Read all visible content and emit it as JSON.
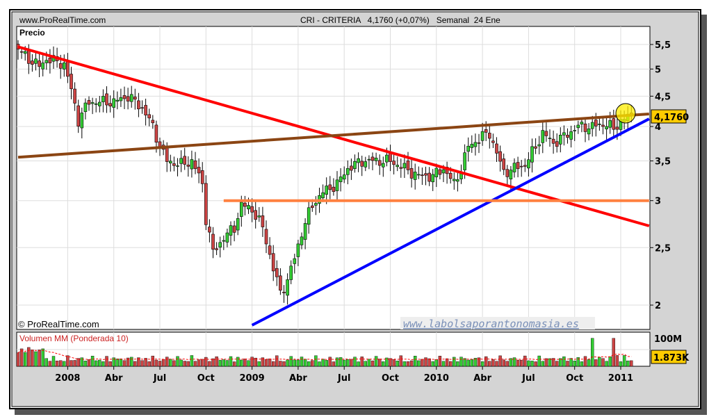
{
  "header": {
    "site": "www.ProRealTime.com",
    "instrument": "CRI - CRITERIA   4,1760 (+0,07%)   Semanal  24 Ene"
  },
  "chart_data": {
    "type": "candlestick",
    "title": "CRI - CRITERIA",
    "price_panel_label": "Precio",
    "volume_panel_label": "Volumen MM (Ponderada 10)",
    "watermark": "© ProRealTime.com",
    "website": "www.labolsaporantonomasia.es",
    "y_ticks": [
      5.5,
      5,
      4.5,
      4,
      3.5,
      3,
      2.5,
      2
    ],
    "y_tick_labels": [
      "5,5",
      "5",
      "4,5",
      "4",
      "3,5",
      "3",
      "2,5",
      "2"
    ],
    "ylim": [
      1.85,
      5.8
    ],
    "y_scale": "log",
    "x_ticks": [
      {
        "label": "2008",
        "week": 14
      },
      {
        "label": "Abr",
        "week": 27
      },
      {
        "label": "Jul",
        "week": 40
      },
      {
        "label": "Oct",
        "week": 53
      },
      {
        "label": "2009",
        "week": 66
      },
      {
        "label": "Abr",
        "week": 79
      },
      {
        "label": "Jul",
        "week": 92
      },
      {
        "label": "Oct",
        "week": 105
      },
      {
        "label": "2010",
        "week": 118
      },
      {
        "label": "Abr",
        "week": 131
      },
      {
        "label": "Jul",
        "week": 144
      },
      {
        "label": "Oct",
        "week": 157
      },
      {
        "label": "2011",
        "week": 170
      }
    ],
    "weeks": 174,
    "close_keypoints": [
      [
        0,
        5.4
      ],
      [
        3,
        5.2
      ],
      [
        6,
        5.05
      ],
      [
        8,
        5.2
      ],
      [
        13,
        5.1
      ],
      [
        15,
        4.6
      ],
      [
        17,
        4.1
      ],
      [
        20,
        4.4
      ],
      [
        23,
        4.4
      ],
      [
        27,
        4.4
      ],
      [
        31,
        4.5
      ],
      [
        35,
        4.3
      ],
      [
        38,
        4.0
      ],
      [
        40,
        3.7
      ],
      [
        42,
        3.5
      ],
      [
        46,
        3.45
      ],
      [
        49,
        3.5
      ],
      [
        52,
        3.2
      ],
      [
        53,
        2.8
      ],
      [
        55,
        2.45
      ],
      [
        58,
        2.6
      ],
      [
        61,
        2.7
      ],
      [
        63,
        2.95
      ],
      [
        66,
        2.9
      ],
      [
        69,
        2.7
      ],
      [
        72,
        2.3
      ],
      [
        74,
        2.1
      ],
      [
        76,
        2.2
      ],
      [
        78,
        2.4
      ],
      [
        80,
        2.65
      ],
      [
        83,
        2.95
      ],
      [
        86,
        3.1
      ],
      [
        90,
        3.2
      ],
      [
        93,
        3.4
      ],
      [
        97,
        3.5
      ],
      [
        101,
        3.5
      ],
      [
        105,
        3.5
      ],
      [
        109,
        3.4
      ],
      [
        113,
        3.3
      ],
      [
        117,
        3.3
      ],
      [
        120,
        3.4
      ],
      [
        123,
        3.2
      ],
      [
        125,
        3.4
      ],
      [
        127,
        3.7
      ],
      [
        131,
        3.85
      ],
      [
        133,
        3.9
      ],
      [
        135,
        3.6
      ],
      [
        137,
        3.35
      ],
      [
        140,
        3.4
      ],
      [
        143,
        3.45
      ],
      [
        146,
        3.7
      ],
      [
        148,
        3.9
      ],
      [
        151,
        3.75
      ],
      [
        154,
        3.85
      ],
      [
        158,
        4.0
      ],
      [
        162,
        4.0
      ],
      [
        166,
        4.05
      ],
      [
        168,
        3.95
      ],
      [
        170,
        4.1
      ],
      [
        173,
        4.176
      ]
    ],
    "last_price": "4,1760",
    "volume_ticks": [
      "100M"
    ],
    "last_volume": "1.873K",
    "trendlines": [
      {
        "name": "red-downtrend",
        "color": "#ff0000",
        "from": [
          0,
          5.45
        ],
        "to": [
          178,
          2.72
        ]
      },
      {
        "name": "brown-resistance",
        "color": "#8b4513",
        "from": [
          0,
          3.55
        ],
        "to": [
          178,
          4.2
        ]
      },
      {
        "name": "blue-uptrend",
        "color": "#0000ff",
        "from": [
          66,
          1.85
        ],
        "to": [
          178,
          4.12
        ]
      },
      {
        "name": "orange-support",
        "color": "#ff8040",
        "from": [
          58,
          3.0
        ],
        "to": [
          178,
          3.0
        ]
      }
    ],
    "colors": {
      "up": "#33cc33",
      "down": "#cc4444",
      "label_bg": "#ffcc00"
    }
  }
}
